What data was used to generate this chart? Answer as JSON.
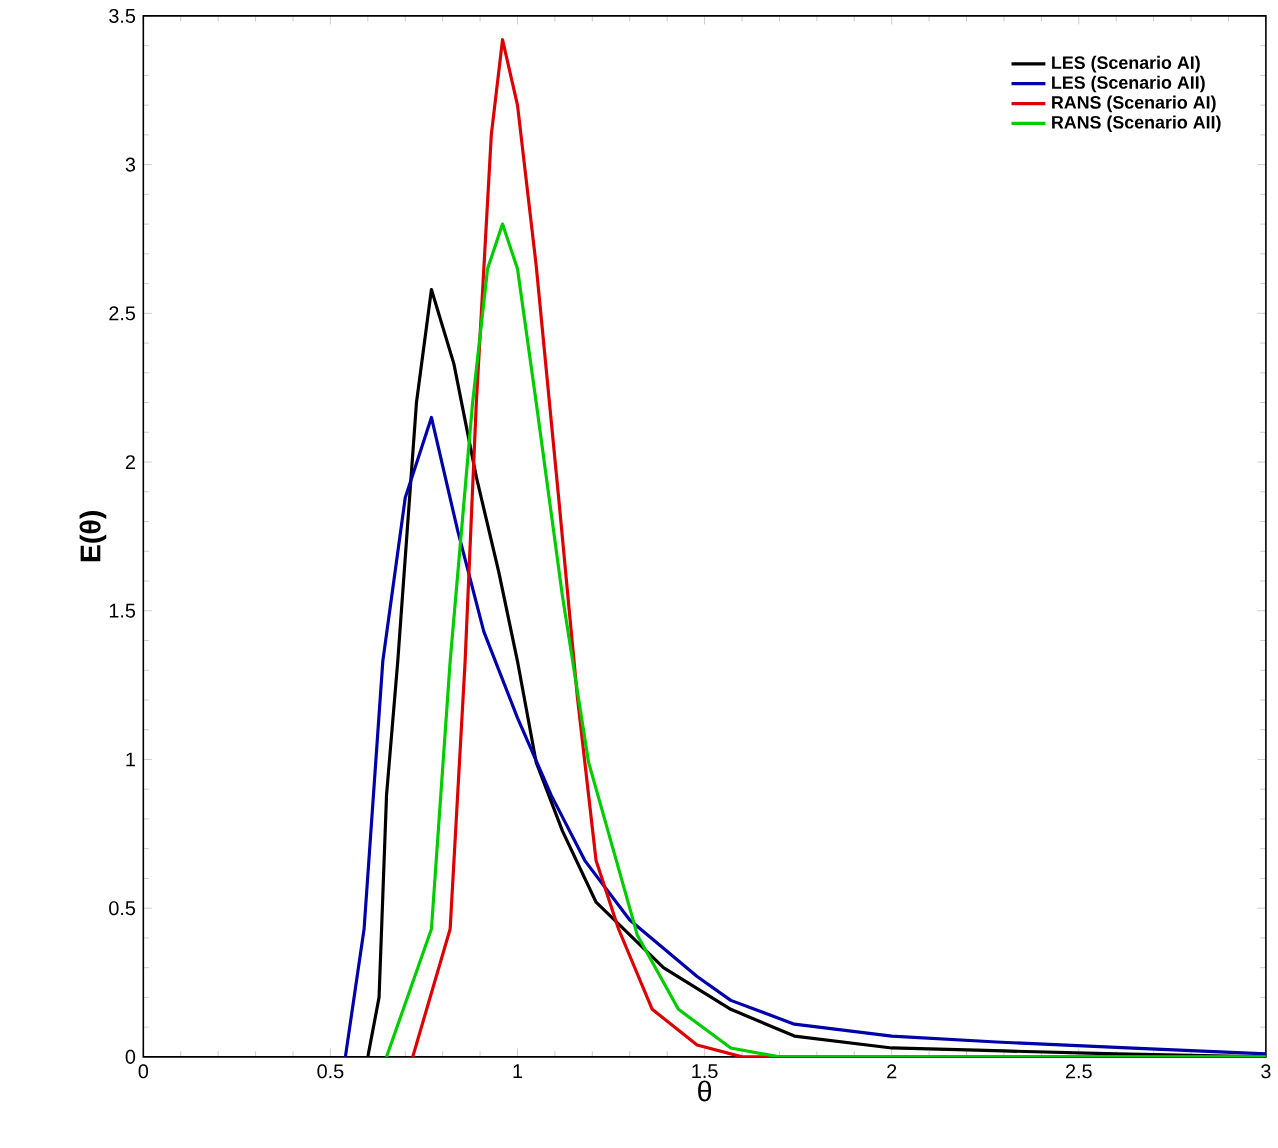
{
  "chart_data": {
    "type": "line",
    "xlabel": "θ",
    "ylabel": "E(θ)",
    "xlim": [
      0,
      3
    ],
    "ylim": [
      0,
      3.5
    ],
    "xticks": [
      0,
      0.5,
      1,
      1.5,
      2,
      2.5,
      3
    ],
    "yticks": [
      0,
      0.5,
      1,
      1.5,
      2,
      2.5,
      3,
      3.5
    ],
    "grid": false,
    "legend": "top right",
    "marker": "none",
    "line_style": "solid",
    "series": [
      {
        "name": "LES (Scenario AI)",
        "color": "#000000",
        "x": [
          0.6,
          0.63,
          0.65,
          0.68,
          0.73,
          0.77,
          0.83,
          0.89,
          0.95,
          1.0,
          1.05,
          1.12,
          1.21,
          1.3,
          1.39,
          1.57,
          1.74,
          2.0,
          2.3,
          2.6,
          3.0
        ],
        "values": [
          0,
          0.2,
          0.88,
          1.33,
          2.2,
          2.58,
          2.33,
          1.95,
          1.63,
          1.33,
          0.99,
          0.76,
          0.52,
          0.41,
          0.3,
          0.16,
          0.07,
          0.03,
          0.02,
          0.01,
          0.0
        ]
      },
      {
        "name": "LES (Scenario AII)",
        "color": "#0000aa",
        "x": [
          0.54,
          0.59,
          0.64,
          0.7,
          0.77,
          0.84,
          0.91,
          1.0,
          1.09,
          1.18,
          1.3,
          1.48,
          1.57,
          1.74,
          2.0,
          2.28,
          2.63,
          3.0
        ],
        "values": [
          0,
          0.43,
          1.33,
          1.88,
          2.15,
          1.77,
          1.43,
          1.14,
          0.88,
          0.66,
          0.46,
          0.27,
          0.19,
          0.11,
          0.07,
          0.05,
          0.03,
          0.01
        ]
      },
      {
        "name": "RANS (Scenario AI)",
        "color": "#dd0000",
        "x": [
          0.72,
          0.82,
          0.86,
          0.89,
          0.93,
          0.96,
          1.0,
          1.05,
          1.11,
          1.16,
          1.21,
          1.27,
          1.36,
          1.48,
          1.6,
          3.0
        ],
        "values": [
          0,
          0.43,
          1.33,
          2.2,
          3.1,
          3.42,
          3.2,
          2.66,
          1.88,
          1.21,
          0.66,
          0.43,
          0.16,
          0.04,
          0,
          0
        ]
      },
      {
        "name": "RANS (Scenario AII)",
        "color": "#00cc00",
        "x": [
          0.65,
          0.77,
          0.82,
          0.88,
          0.92,
          0.96,
          1.0,
          1.05,
          1.12,
          1.19,
          1.3,
          1.32,
          1.43,
          1.57,
          1.7,
          3.0
        ],
        "values": [
          0,
          0.43,
          1.33,
          2.2,
          2.65,
          2.8,
          2.65,
          2.2,
          1.55,
          0.99,
          0.5,
          0.41,
          0.16,
          0.03,
          0,
          0
        ]
      }
    ]
  }
}
